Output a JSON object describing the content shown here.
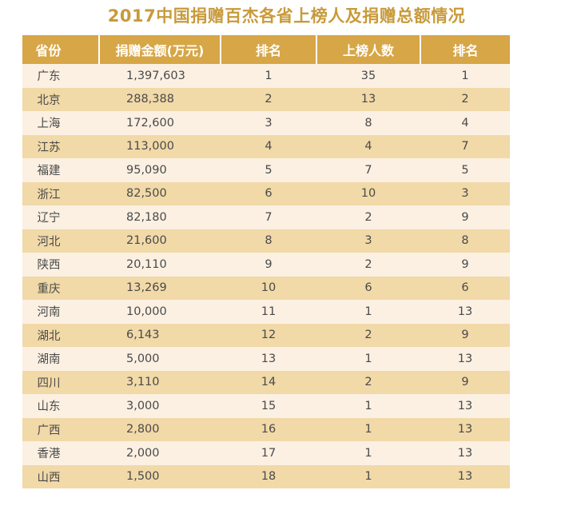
{
  "chart_data": {
    "type": "table",
    "title": "2017中国捐赠百杰各省上榜人及捐赠总额情况",
    "columns": [
      "省份",
      "捐赠金额(万元)",
      "排名",
      "上榜人数",
      "排名"
    ],
    "rows": [
      [
        "广东",
        "1,397,603",
        "1",
        "35",
        "1"
      ],
      [
        "北京",
        "288,388",
        "2",
        "13",
        "2"
      ],
      [
        "上海",
        "172,600",
        "3",
        "8",
        "4"
      ],
      [
        "江苏",
        "113,000",
        "4",
        "4",
        "7"
      ],
      [
        "福建",
        "95,090",
        "5",
        "7",
        "5"
      ],
      [
        "浙江",
        "82,500",
        "6",
        "10",
        "3"
      ],
      [
        "辽宁",
        "82,180",
        "7",
        "2",
        "9"
      ],
      [
        "河北",
        "21,600",
        "8",
        "3",
        "8"
      ],
      [
        "陕西",
        "20,110",
        "9",
        "2",
        "9"
      ],
      [
        "重庆",
        "13,269",
        "10",
        "6",
        "6"
      ],
      [
        "河南",
        "10,000",
        "11",
        "1",
        "13"
      ],
      [
        "湖北",
        "6,143",
        "12",
        "2",
        "9"
      ],
      [
        "湖南",
        "5,000",
        "13",
        "1",
        "13"
      ],
      [
        "四川",
        "3,110",
        "14",
        "2",
        "9"
      ],
      [
        "山东",
        "3,000",
        "15",
        "1",
        "13"
      ],
      [
        "广西",
        "2,800",
        "16",
        "1",
        "13"
      ],
      [
        "香港",
        "2,000",
        "17",
        "1",
        "13"
      ],
      [
        "山西",
        "1,500",
        "18",
        "1",
        "13"
      ]
    ]
  },
  "colors": {
    "title": "#c99a3a",
    "header_bg": "#d7a647",
    "row_light": "#fbf0e2",
    "row_dark": "#f1d9a8"
  }
}
